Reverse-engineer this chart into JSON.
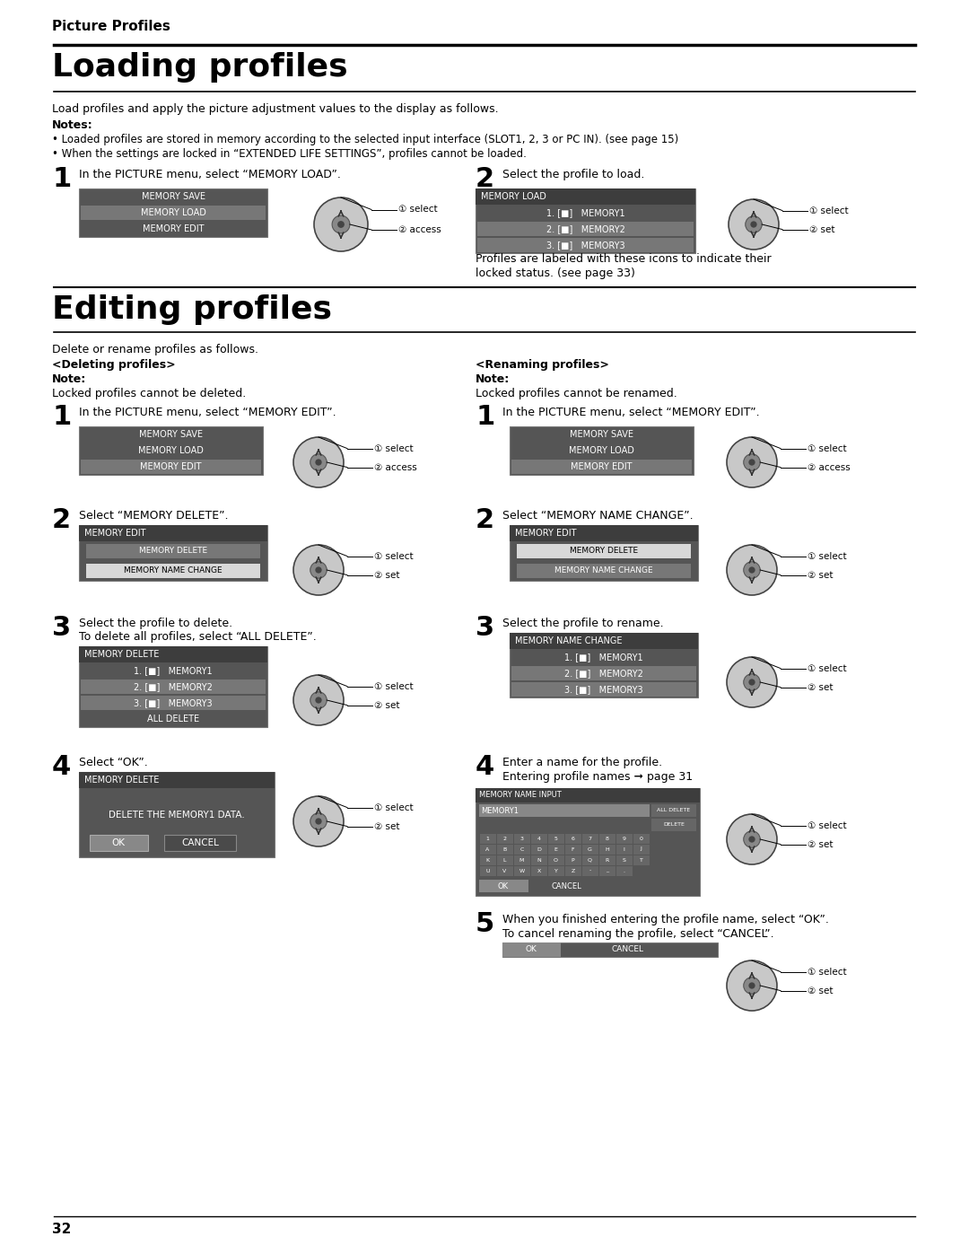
{
  "page_number": "32",
  "header_text": "Picture Profiles",
  "section1_title": "Loading profiles",
  "section2_title": "Editing profiles",
  "bg_color": "#ffffff",
  "dark_menu_bg": "#555555",
  "darker_menu_bg": "#3d3d3d",
  "selected_row_bg": "#777777",
  "selected_row_bg2": "#888888",
  "white_row_bg": "#e0e0e0",
  "menu_text": "#ffffff",
  "black_text": "#000000",
  "line_color": "#000000",
  "joystick_outer": "#c8c8c8",
  "joystick_inner": "#888888",
  "joystick_center": "#444444"
}
